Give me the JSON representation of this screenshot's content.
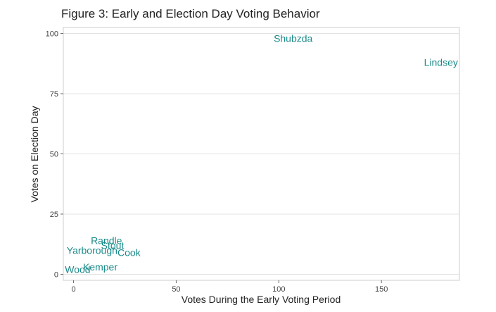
{
  "chart_data": {
    "type": "scatter",
    "title": "Figure 3: Early and Election Day Voting Behavior",
    "xlabel": "Votes During the Early Voting Period",
    "ylabel": "Votes on Election Day",
    "xlim": [
      -5,
      188
    ],
    "ylim": [
      -2.5,
      102.5
    ],
    "xticks": [
      0,
      50,
      100,
      150
    ],
    "yticks": [
      0,
      25,
      50,
      75,
      100
    ],
    "grid": true,
    "label_color": "#1a8a8a",
    "points": [
      {
        "label": "Shubzda",
        "x": 107,
        "y": 98
      },
      {
        "label": "Lindsey",
        "x": 179,
        "y": 88
      },
      {
        "label": "Randle",
        "x": 16,
        "y": 14
      },
      {
        "label": "Stout",
        "x": 19,
        "y": 12
      },
      {
        "label": "Yarborough",
        "x": 9,
        "y": 10
      },
      {
        "label": "Cook",
        "x": 27,
        "y": 9
      },
      {
        "label": "Kemper",
        "x": 13,
        "y": 3
      },
      {
        "label": "Wood",
        "x": 2,
        "y": 2
      }
    ]
  }
}
